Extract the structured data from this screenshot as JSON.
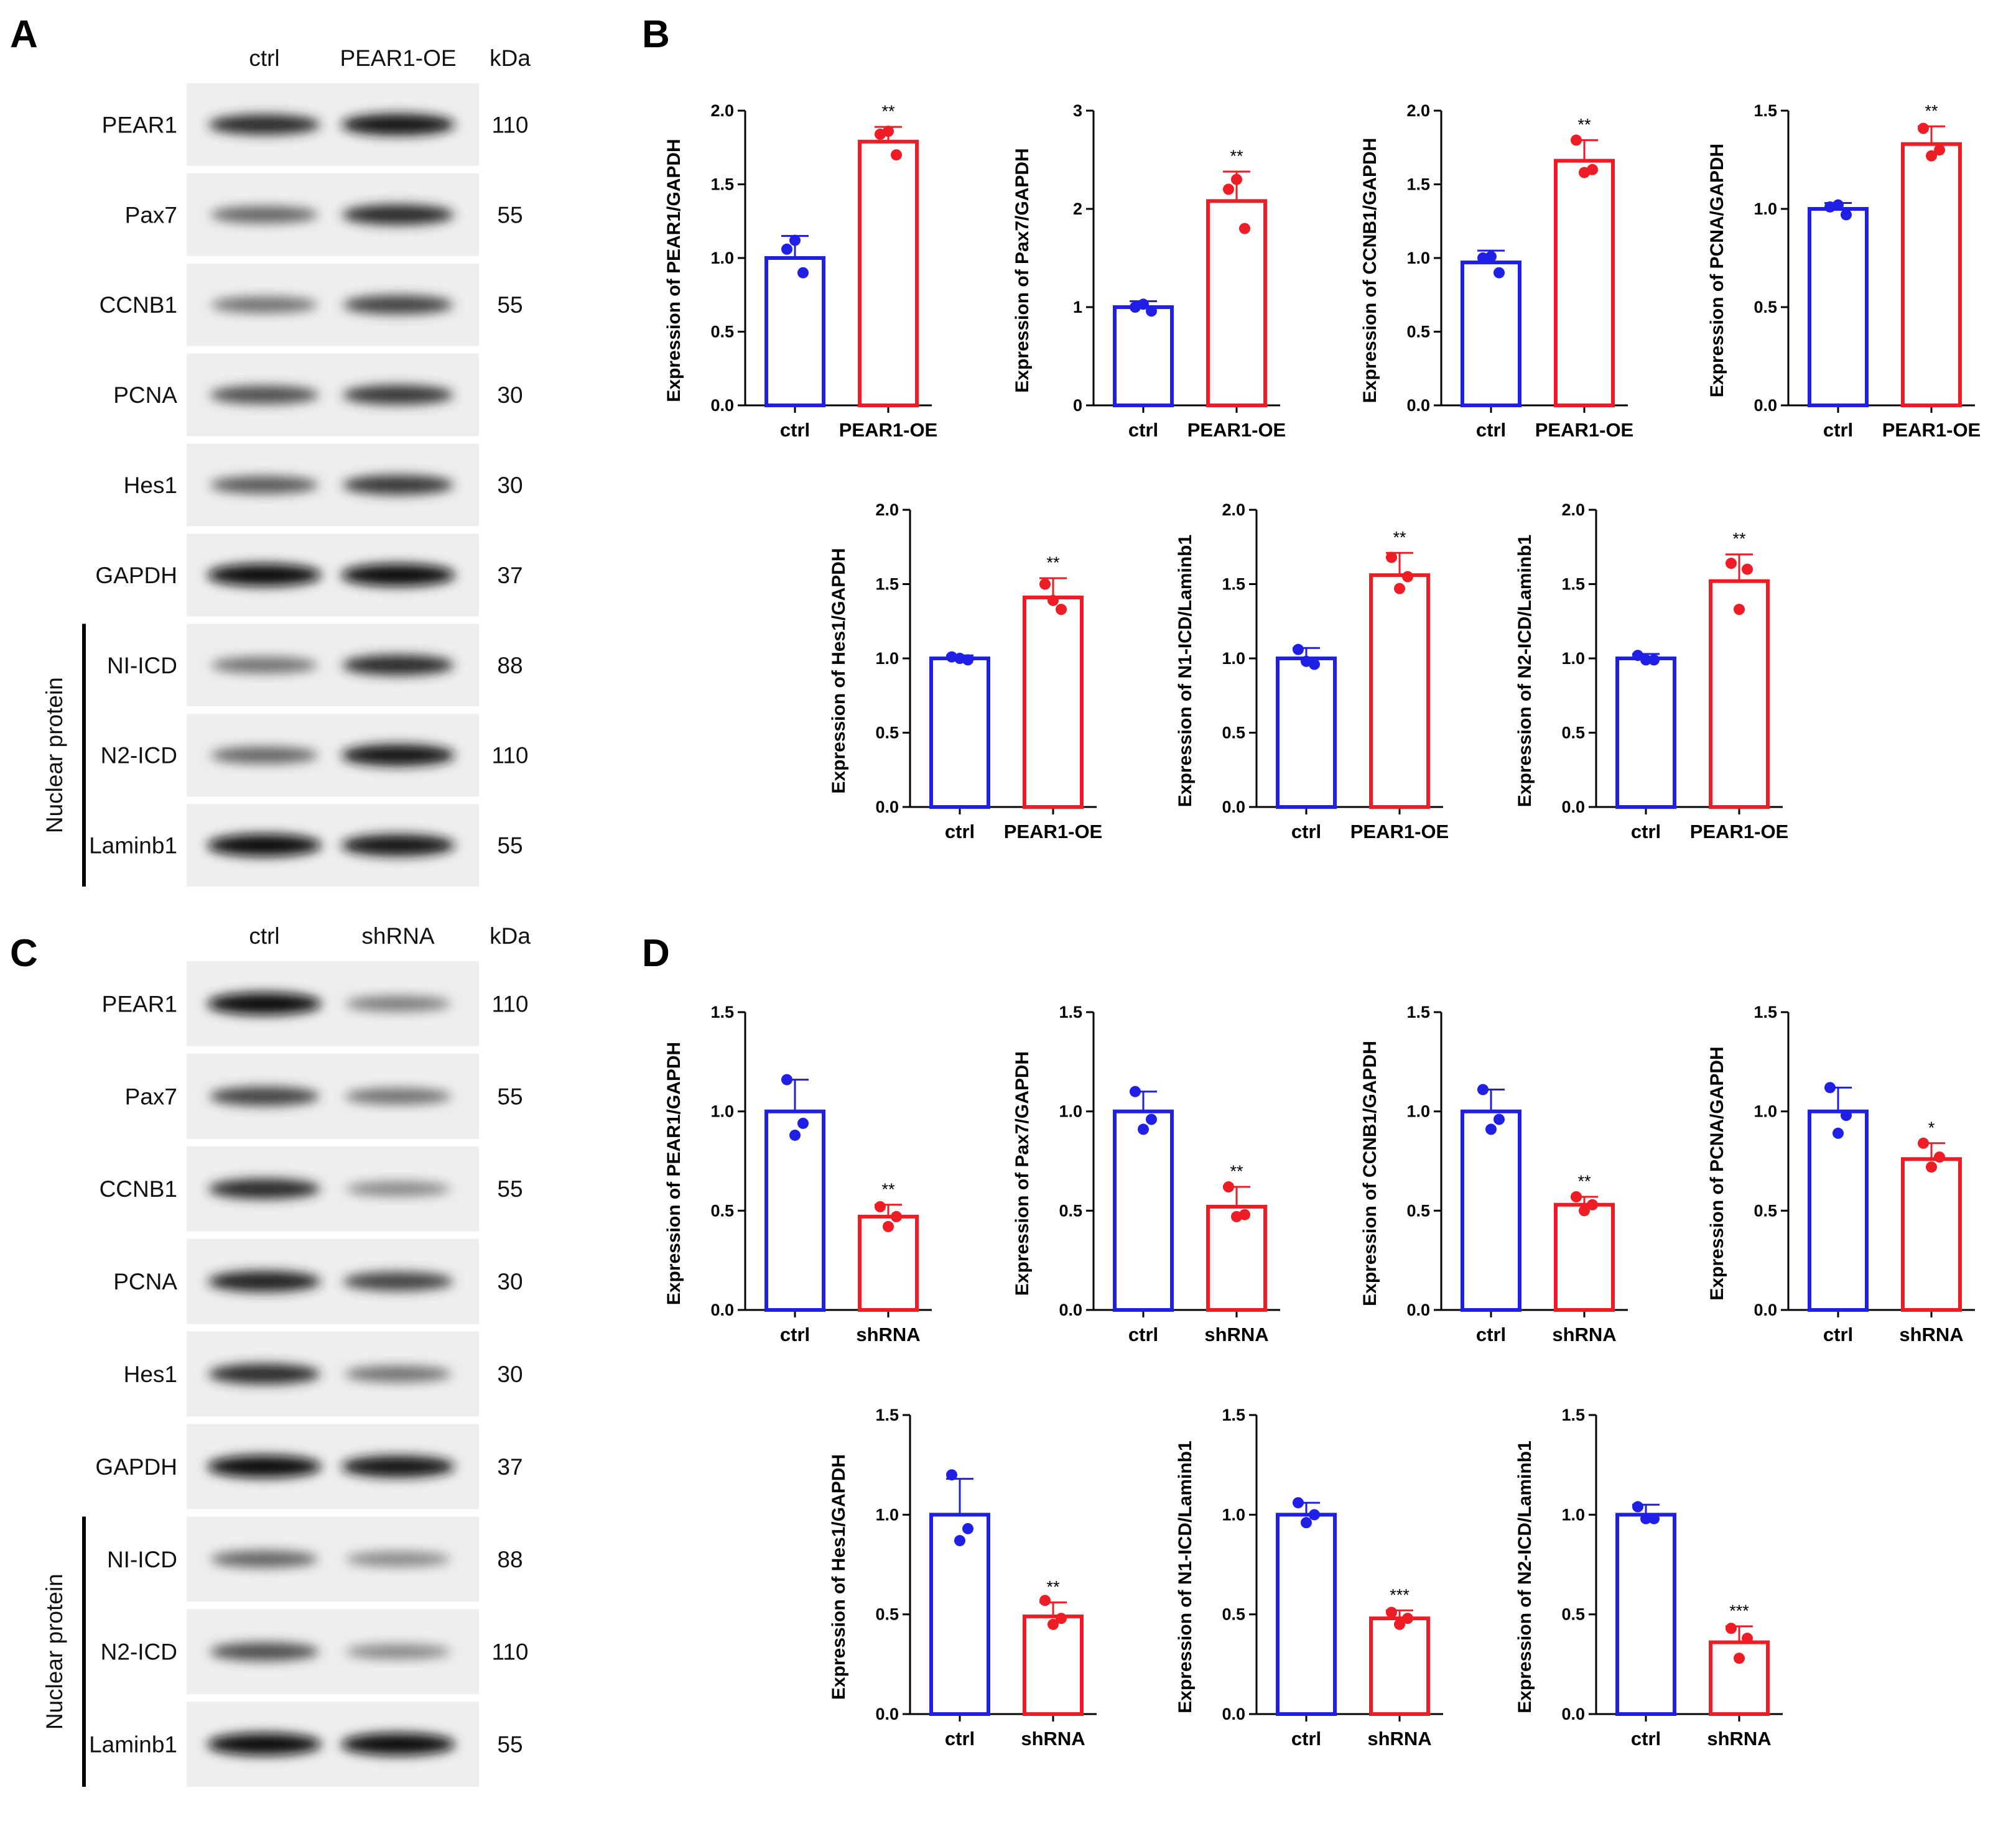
{
  "panels": {
    "A": "A",
    "B": "B",
    "C": "C",
    "D": "D"
  },
  "blot_A": {
    "lane_labels": [
      "ctrl",
      "PEAR1-OE"
    ],
    "kda_header": "kDa",
    "group_label": "Nuclear protein",
    "rows": [
      {
        "label": "PEAR1",
        "kda": "110",
        "intensity": [
          0.85,
          0.95
        ],
        "nuclear": false
      },
      {
        "label": "Pax7",
        "kda": "55",
        "intensity": [
          0.6,
          0.85
        ],
        "nuclear": false
      },
      {
        "label": "CCNB1",
        "kda": "55",
        "intensity": [
          0.55,
          0.75
        ],
        "nuclear": false
      },
      {
        "label": "PCNA",
        "kda": "30",
        "intensity": [
          0.7,
          0.8
        ],
        "nuclear": false
      },
      {
        "label": "Hes1",
        "kda": "30",
        "intensity": [
          0.65,
          0.8
        ],
        "nuclear": false
      },
      {
        "label": "GAPDH",
        "kda": "37",
        "intensity": [
          1.0,
          1.0
        ],
        "nuclear": false
      },
      {
        "label": "NI-ICD",
        "kda": "88",
        "intensity": [
          0.55,
          0.85
        ],
        "nuclear": true
      },
      {
        "label": "N2-ICD",
        "kda": "110",
        "intensity": [
          0.6,
          0.95
        ],
        "nuclear": true
      },
      {
        "label": "Laminb1",
        "kda": "55",
        "intensity": [
          1.0,
          0.95
        ],
        "nuclear": true
      }
    ]
  },
  "blot_C": {
    "lane_labels": [
      "ctrl",
      "shRNA"
    ],
    "kda_header": "kDa",
    "group_label": "Nuclear protein",
    "rows": [
      {
        "label": "PEAR1",
        "kda": "110",
        "intensity": [
          1.0,
          0.5
        ],
        "nuclear": false
      },
      {
        "label": "Pax7",
        "kda": "55",
        "intensity": [
          0.75,
          0.55
        ],
        "nuclear": false
      },
      {
        "label": "CCNB1",
        "kda": "55",
        "intensity": [
          0.85,
          0.45
        ],
        "nuclear": false
      },
      {
        "label": "PCNA",
        "kda": "30",
        "intensity": [
          0.9,
          0.75
        ],
        "nuclear": false
      },
      {
        "label": "Hes1",
        "kda": "30",
        "intensity": [
          0.85,
          0.55
        ],
        "nuclear": false
      },
      {
        "label": "GAPDH",
        "kda": "37",
        "intensity": [
          1.0,
          0.95
        ],
        "nuclear": false
      },
      {
        "label": "NI-ICD",
        "kda": "88",
        "intensity": [
          0.6,
          0.45
        ],
        "nuclear": true
      },
      {
        "label": "N2-ICD",
        "kda": "110",
        "intensity": [
          0.7,
          0.45
        ],
        "nuclear": true
      },
      {
        "label": "Laminb1",
        "kda": "55",
        "intensity": [
          1.0,
          1.0
        ],
        "nuclear": true
      }
    ]
  },
  "chart_data": [
    {
      "type": "bar",
      "panel": "B",
      "ylabel": "Expression of PEAR1/GAPDH",
      "categories": [
        "ctrl",
        "PEAR1-OE"
      ],
      "values": [
        1.0,
        1.79
      ],
      "sd": [
        0.15,
        0.1
      ],
      "points": [
        [
          1.06,
          0.9,
          1.12
        ],
        [
          1.84,
          1.7,
          1.86
        ]
      ],
      "ylim": [
        0,
        2.0
      ],
      "yticks": [
        0.0,
        0.5,
        1.0,
        1.5,
        2.0
      ],
      "tick_labels": [
        "0.0",
        "0.5",
        "1.0",
        "1.5",
        "2.0"
      ],
      "significance": "**",
      "colors": [
        "#1f1fe6",
        "#ee1c24"
      ]
    },
    {
      "type": "bar",
      "panel": "B",
      "ylabel": "Expression of Pax7/GAPDH",
      "categories": [
        "ctrl",
        "PEAR1-OE"
      ],
      "values": [
        1.0,
        2.08
      ],
      "sd": [
        0.06,
        0.3
      ],
      "points": [
        [
          1.0,
          0.96,
          1.03
        ],
        [
          2.2,
          1.8,
          2.3
        ]
      ],
      "ylim": [
        0,
        3
      ],
      "yticks": [
        0,
        1,
        2,
        3
      ],
      "tick_labels": [
        "0",
        "1",
        "2",
        "3"
      ],
      "significance": "**",
      "colors": [
        "#1f1fe6",
        "#ee1c24"
      ]
    },
    {
      "type": "bar",
      "panel": "B",
      "ylabel": "Expression of CCNB1/GAPDH",
      "categories": [
        "ctrl",
        "PEAR1-OE"
      ],
      "values": [
        0.97,
        1.66
      ],
      "sd": [
        0.08,
        0.14
      ],
      "points": [
        [
          1.0,
          0.9,
          1.01
        ],
        [
          1.8,
          1.6,
          1.58
        ]
      ],
      "ylim": [
        0,
        2.0
      ],
      "yticks": [
        0.0,
        0.5,
        1.0,
        1.5,
        2.0
      ],
      "tick_labels": [
        "0.0",
        "0.5",
        "1.0",
        "1.5",
        "2.0"
      ],
      "significance": "**",
      "colors": [
        "#1f1fe6",
        "#ee1c24"
      ]
    },
    {
      "type": "bar",
      "panel": "B",
      "ylabel": "Expression of PCNA/GAPDH",
      "categories": [
        "ctrl",
        "PEAR1-OE"
      ],
      "values": [
        1.0,
        1.33
      ],
      "sd": [
        0.03,
        0.09
      ],
      "points": [
        [
          1.01,
          0.97,
          1.02
        ],
        [
          1.41,
          1.3,
          1.27
        ]
      ],
      "ylim": [
        0,
        1.5
      ],
      "yticks": [
        0.0,
        0.5,
        1.0,
        1.5
      ],
      "tick_labels": [
        "0.0",
        "0.5",
        "1.0",
        "1.5"
      ],
      "significance": "**",
      "colors": [
        "#1f1fe6",
        "#ee1c24"
      ]
    },
    {
      "type": "bar",
      "panel": "B",
      "ylabel": "Expression of Hes1/GAPDH",
      "categories": [
        "ctrl",
        "PEAR1-OE"
      ],
      "values": [
        1.0,
        1.41
      ],
      "sd": [
        0.02,
        0.13
      ],
      "points": [
        [
          1.01,
          0.99,
          1.0
        ],
        [
          1.5,
          1.33,
          1.39
        ]
      ],
      "ylim": [
        0,
        2.0
      ],
      "yticks": [
        0.0,
        0.5,
        1.0,
        1.5,
        2.0
      ],
      "tick_labels": [
        "0.0",
        "0.5",
        "1.0",
        "1.5",
        "2.0"
      ],
      "significance": "**",
      "colors": [
        "#1f1fe6",
        "#ee1c24"
      ]
    },
    {
      "type": "bar",
      "panel": "B",
      "ylabel": "Expression of N1-ICD/Laminb1",
      "categories": [
        "ctrl",
        "PEAR1-OE"
      ],
      "values": [
        1.0,
        1.56
      ],
      "sd": [
        0.07,
        0.15
      ],
      "points": [
        [
          1.06,
          0.96,
          0.98
        ],
        [
          1.68,
          1.55,
          1.47
        ]
      ],
      "ylim": [
        0,
        2.0
      ],
      "yticks": [
        0.0,
        0.5,
        1.0,
        1.5,
        2.0
      ],
      "tick_labels": [
        "0.0",
        "0.5",
        "1.0",
        "1.5",
        "2.0"
      ],
      "significance": "**",
      "colors": [
        "#1f1fe6",
        "#ee1c24"
      ]
    },
    {
      "type": "bar",
      "panel": "B",
      "ylabel": "Expression of N2-ICD/Laminb1",
      "categories": [
        "ctrl",
        "PEAR1-OE"
      ],
      "values": [
        1.0,
        1.52
      ],
      "sd": [
        0.03,
        0.18
      ],
      "points": [
        [
          1.02,
          0.99,
          0.99
        ],
        [
          1.64,
          1.6,
          1.33
        ]
      ],
      "ylim": [
        0,
        2.0
      ],
      "yticks": [
        0.0,
        0.5,
        1.0,
        1.5,
        2.0
      ],
      "tick_labels": [
        "0.0",
        "0.5",
        "1.0",
        "1.5",
        "2.0"
      ],
      "significance": "**",
      "colors": [
        "#1f1fe6",
        "#ee1c24"
      ]
    },
    {
      "type": "bar",
      "panel": "D",
      "ylabel": "Expression of PEAR1/GAPDH",
      "categories": [
        "ctrl",
        "shRNA"
      ],
      "values": [
        1.0,
        0.47
      ],
      "sd": [
        0.16,
        0.06
      ],
      "points": [
        [
          1.16,
          0.94,
          0.88
        ],
        [
          0.52,
          0.47,
          0.42
        ]
      ],
      "ylim": [
        0,
        1.5
      ],
      "yticks": [
        0.0,
        0.5,
        1.0,
        1.5
      ],
      "tick_labels": [
        "0.0",
        "0.5",
        "1.0",
        "1.5"
      ],
      "significance": "**",
      "colors": [
        "#1f1fe6",
        "#ee1c24"
      ]
    },
    {
      "type": "bar",
      "panel": "D",
      "ylabel": "Expression of Pax7/GAPDH",
      "categories": [
        "ctrl",
        "shRNA"
      ],
      "values": [
        1.0,
        0.52
      ],
      "sd": [
        0.1,
        0.1
      ],
      "points": [
        [
          1.1,
          0.96,
          0.91
        ],
        [
          0.62,
          0.48,
          0.47
        ]
      ],
      "ylim": [
        0,
        1.5
      ],
      "yticks": [
        0.0,
        0.5,
        1.0,
        1.5
      ],
      "tick_labels": [
        "0.0",
        "0.5",
        "1.0",
        "1.5"
      ],
      "significance": "**",
      "colors": [
        "#1f1fe6",
        "#ee1c24"
      ]
    },
    {
      "type": "bar",
      "panel": "D",
      "ylabel": "Expression of CCNB1/GAPDH",
      "categories": [
        "ctrl",
        "shRNA"
      ],
      "values": [
        1.0,
        0.53
      ],
      "sd": [
        0.11,
        0.04
      ],
      "points": [
        [
          1.11,
          0.96,
          0.91
        ],
        [
          0.57,
          0.53,
          0.5
        ]
      ],
      "ylim": [
        0,
        1.5
      ],
      "yticks": [
        0.0,
        0.5,
        1.0,
        1.5
      ],
      "tick_labels": [
        "0.0",
        "0.5",
        "1.0",
        "1.5"
      ],
      "significance": "**",
      "colors": [
        "#1f1fe6",
        "#ee1c24"
      ]
    },
    {
      "type": "bar",
      "panel": "D",
      "ylabel": "Expression of PCNA/GAPDH",
      "categories": [
        "ctrl",
        "shRNA"
      ],
      "values": [
        1.0,
        0.76
      ],
      "sd": [
        0.12,
        0.08
      ],
      "points": [
        [
          1.12,
          0.98,
          0.89
        ],
        [
          0.84,
          0.77,
          0.72
        ]
      ],
      "ylim": [
        0,
        1.5
      ],
      "yticks": [
        0.0,
        0.5,
        1.0,
        1.5
      ],
      "tick_labels": [
        "0.0",
        "0.5",
        "1.0",
        "1.5"
      ],
      "significance": "*",
      "colors": [
        "#1f1fe6",
        "#ee1c24"
      ]
    },
    {
      "type": "bar",
      "panel": "D",
      "ylabel": "Expression of Hes1/GAPDH",
      "categories": [
        "ctrl",
        "shRNA"
      ],
      "values": [
        1.0,
        0.49
      ],
      "sd": [
        0.18,
        0.07
      ],
      "points": [
        [
          1.2,
          0.93,
          0.87
        ],
        [
          0.57,
          0.48,
          0.45
        ]
      ],
      "ylim": [
        0,
        1.5
      ],
      "yticks": [
        0.0,
        0.5,
        1.0,
        1.5
      ],
      "tick_labels": [
        "0.0",
        "0.5",
        "1.0",
        "1.5"
      ],
      "significance": "**",
      "colors": [
        "#1f1fe6",
        "#ee1c24"
      ]
    },
    {
      "type": "bar",
      "panel": "D",
      "ylabel": "Expression of N1-ICD/Laminb1",
      "categories": [
        "ctrl",
        "shRNA"
      ],
      "values": [
        1.0,
        0.48
      ],
      "sd": [
        0.06,
        0.04
      ],
      "points": [
        [
          1.06,
          1.0,
          0.96
        ],
        [
          0.51,
          0.48,
          0.45
        ]
      ],
      "ylim": [
        0,
        1.5
      ],
      "yticks": [
        0.0,
        0.5,
        1.0,
        1.5
      ],
      "tick_labels": [
        "0.0",
        "0.5",
        "1.0",
        "1.5"
      ],
      "significance": "***",
      "colors": [
        "#1f1fe6",
        "#ee1c24"
      ]
    },
    {
      "type": "bar",
      "panel": "D",
      "ylabel": "Expression of N2-ICD/Laminb1",
      "categories": [
        "ctrl",
        "shRNA"
      ],
      "values": [
        1.0,
        0.36
      ],
      "sd": [
        0.05,
        0.08
      ],
      "points": [
        [
          1.04,
          0.98,
          0.98
        ],
        [
          0.43,
          0.38,
          0.28
        ]
      ],
      "ylim": [
        0,
        1.5
      ],
      "yticks": [
        0.0,
        0.5,
        1.0,
        1.5
      ],
      "tick_labels": [
        "0.0",
        "0.5",
        "1.0",
        "1.5"
      ],
      "significance": "***",
      "colors": [
        "#1f1fe6",
        "#ee1c24"
      ]
    }
  ]
}
